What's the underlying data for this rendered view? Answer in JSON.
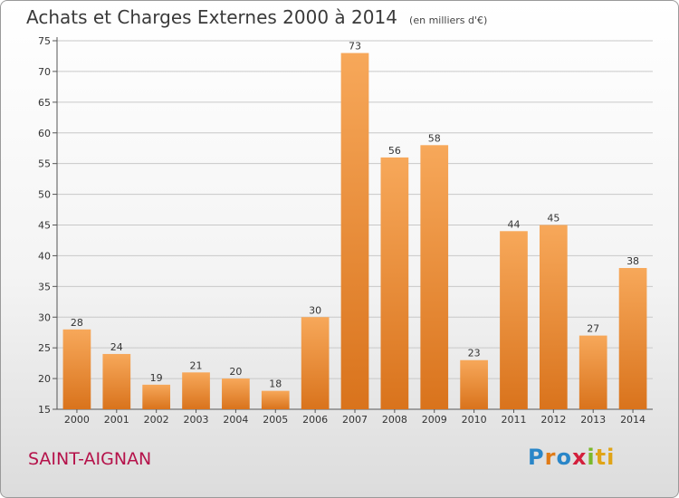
{
  "chart_data": {
    "type": "bar",
    "title": "Achats et Charges Externes 2000 à 2014",
    "subtitle": "(en milliers d'€)",
    "categories": [
      "2000",
      "2001",
      "2002",
      "2003",
      "2004",
      "2005",
      "2006",
      "2007",
      "2008",
      "2009",
      "2010",
      "2011",
      "2012",
      "2013",
      "2014"
    ],
    "values": [
      28,
      24,
      19,
      21,
      20,
      18,
      30,
      73,
      56,
      58,
      23,
      44,
      45,
      27,
      38
    ],
    "ylim": [
      15,
      75
    ],
    "yticks": [
      15,
      20,
      25,
      30,
      35,
      40,
      45,
      50,
      55,
      60,
      65,
      70,
      75
    ],
    "grid": true,
    "xlabel": "",
    "ylabel": "",
    "colors": {
      "bar_top": "#f7a85a",
      "bar_bottom": "#d9731c",
      "grid": "#c8c8c8"
    }
  },
  "footer": {
    "town": "SAINT-AIGNAN",
    "logo_letters": [
      "P",
      "r",
      "o",
      "x",
      "i",
      "ti"
    ]
  }
}
